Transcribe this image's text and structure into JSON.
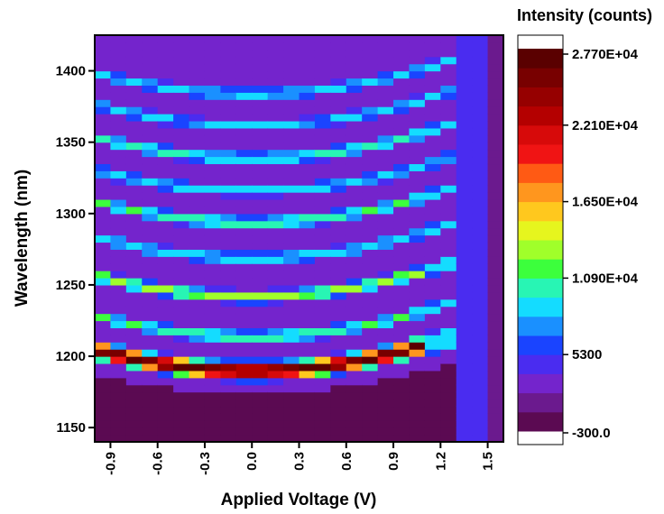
{
  "chart_data": {
    "type": "heatmap",
    "title": "",
    "xlabel": "Applied Voltage (V)",
    "ylabel": "Wavelength (nm)",
    "xlim": [
      -1.0,
      1.6
    ],
    "ylim": [
      1140,
      1425
    ],
    "x_ticks": [
      -0.9,
      -0.6,
      -0.3,
      0.0,
      0.3,
      0.6,
      0.9,
      1.2,
      1.5
    ],
    "x_tick_labels": [
      "-0.9",
      "-0.6",
      "-0.3",
      "0.0",
      "0.3",
      "0.6",
      "0.9",
      "1.2",
      "1.5"
    ],
    "y_ticks": [
      1150,
      1200,
      1250,
      1300,
      1350,
      1400
    ],
    "y_tick_labels": [
      "1150",
      "1200",
      "1250",
      "1300",
      "1350",
      "1400"
    ],
    "voltage_step": 0.1,
    "wavelength_step": 5,
    "fringe_center_voltage": 0.0,
    "fringe_curvature_nm_per_V2": 15,
    "fringes": [
      {
        "wavelength_at_0V": 1190,
        "peak_counts": 27000
      },
      {
        "wavelength_at_0V": 1214,
        "peak_counts": 11000
      },
      {
        "wavelength_at_0V": 1242,
        "peak_counts": 13000
      },
      {
        "wavelength_at_0V": 1269,
        "peak_counts": 9500
      },
      {
        "wavelength_at_0V": 1294,
        "peak_counts": 11000
      },
      {
        "wavelength_at_0V": 1316,
        "peak_counts": 9000
      },
      {
        "wavelength_at_0V": 1339,
        "peak_counts": 10500
      },
      {
        "wavelength_at_0V": 1362,
        "peak_counts": 8500
      },
      {
        "wavelength_at_0V": 1384,
        "peak_counts": 9000
      }
    ],
    "blue_column_voltages": [
      1.4
    ],
    "colorbar": {
      "title": "Intensity (counts)",
      "min": -300.0,
      "max": 27700,
      "ticks": [
        27700,
        22100,
        16500,
        10900,
        5300,
        -300.0
      ],
      "tick_labels": [
        "2.770E+04",
        "2.210E+04",
        "1.650E+04",
        "1.090E+04",
        "5300",
        "-300.0"
      ],
      "colors": [
        "#5b0a52",
        "#6b1a8e",
        "#7424cc",
        "#4a2cf0",
        "#1a44ff",
        "#1a90ff",
        "#14dcff",
        "#28f5b4",
        "#3cff3c",
        "#a0ff2a",
        "#e6f51e",
        "#ffc81e",
        "#ff961e",
        "#ff5a14",
        "#f01414",
        "#d70a0a",
        "#b40000",
        "#960000",
        "#780000",
        "#5a0000"
      ]
    }
  }
}
